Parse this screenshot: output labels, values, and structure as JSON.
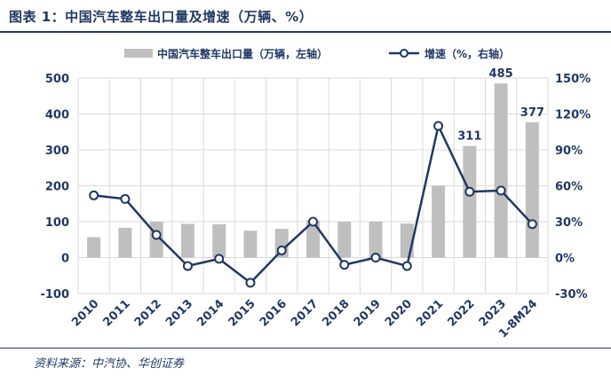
{
  "figure": {
    "title": "图表 1：中国汽车整车出口量及增速（万辆、%）",
    "source": "资料来源：中汽协、华创证券"
  },
  "colors": {
    "bar": "#bfbfbf",
    "line": "#1f3864",
    "text": "#1f3864",
    "grid": "#d9d9d9"
  },
  "chart_data": {
    "type": "bar+line",
    "categories": [
      "2010",
      "2011",
      "2012",
      "2013",
      "2014",
      "2015",
      "2016",
      "2017",
      "2018",
      "2019",
      "2020",
      "2021",
      "2022",
      "2023",
      "1-8M24"
    ],
    "series": [
      {
        "name": "中国汽车整车出口量（万辆，左轴）",
        "type": "bar",
        "axis": "left",
        "values": [
          57,
          83,
          100,
          94,
          93,
          75,
          80,
          104,
          100,
          100,
          95,
          200,
          311,
          485,
          377
        ]
      },
      {
        "name": "增速（%，右轴）",
        "type": "line",
        "axis": "right",
        "values": [
          52,
          49,
          19,
          -7,
          -1,
          -21,
          6,
          30,
          -6,
          0,
          -7,
          110,
          55,
          56,
          28
        ]
      }
    ],
    "data_labels": [
      {
        "index": 12,
        "text": "311"
      },
      {
        "index": 13,
        "text": "485"
      },
      {
        "index": 14,
        "text": "377"
      }
    ],
    "left_axis": {
      "min": -100,
      "max": 500,
      "ticks": [
        -100,
        0,
        100,
        200,
        300,
        400,
        500
      ],
      "tick_labels": [
        "-100",
        "0",
        "100",
        "200",
        "300",
        "400",
        "500"
      ]
    },
    "right_axis": {
      "min": -30,
      "max": 150,
      "ticks": [
        -30,
        0,
        30,
        60,
        90,
        120,
        150
      ],
      "tick_labels": [
        "-30%",
        "0%",
        "30%",
        "60%",
        "90%",
        "120%",
        "150%"
      ]
    },
    "grid": true,
    "legend_position": "top"
  }
}
